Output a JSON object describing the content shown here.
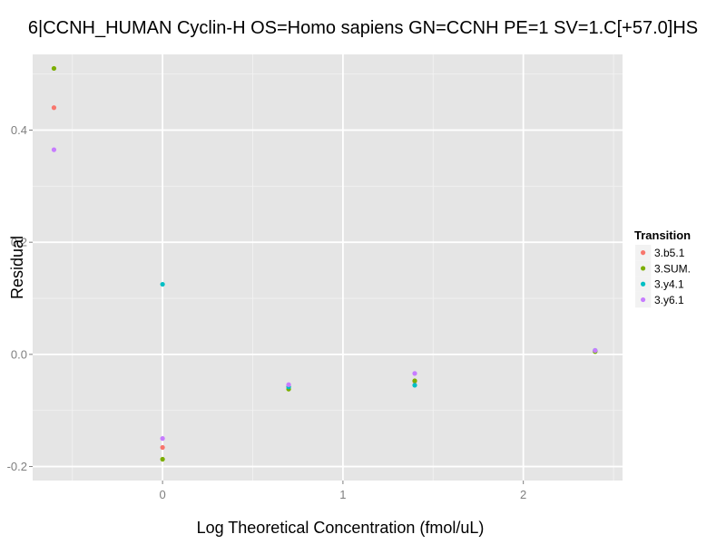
{
  "chart_data": {
    "type": "scatter",
    "title": "6|CCNH_HUMAN Cyclin-H OS=Homo sapiens GN=CCNH PE=1 SV=1.C[+57.0]HS",
    "xlabel": "Log Theoretical Concentration (fmol/uL)",
    "ylabel": "Residual",
    "xlim": [
      -0.72,
      2.55
    ],
    "ylim": [
      -0.225,
      0.535
    ],
    "x_ticks": [
      {
        "value": 0,
        "label": "0"
      },
      {
        "value": 1,
        "label": "1"
      },
      {
        "value": 2,
        "label": "2"
      }
    ],
    "y_ticks": [
      {
        "value": -0.2,
        "label": "-0.2"
      },
      {
        "value": 0.0,
        "label": "0.0"
      },
      {
        "value": 0.2,
        "label": "0.2"
      },
      {
        "value": 0.4,
        "label": "0.4"
      }
    ],
    "grid": true,
    "background": "#e5e5e5",
    "legend": {
      "title": "Transition",
      "position": "right"
    },
    "series": [
      {
        "name": "3.b5.1",
        "color": "#f8766d",
        "points": [
          {
            "x": -0.602,
            "y": 0.44
          },
          {
            "x": 0.0,
            "y": -0.166
          },
          {
            "x": 0.699,
            "y": -0.058
          },
          {
            "x": 1.398,
            "y": -0.048
          },
          {
            "x": 2.398,
            "y": 0.006
          }
        ]
      },
      {
        "name": "3.SUM.",
        "color": "#7cae00",
        "points": [
          {
            "x": -0.602,
            "y": 0.51
          },
          {
            "x": 0.0,
            "y": -0.187
          },
          {
            "x": 0.699,
            "y": -0.062
          },
          {
            "x": 1.398,
            "y": -0.047
          },
          {
            "x": 2.398,
            "y": 0.005
          }
        ]
      },
      {
        "name": "3.y4.1",
        "color": "#00bfc4",
        "points": [
          {
            "x": 0.0,
            "y": 0.125
          },
          {
            "x": 0.699,
            "y": -0.058
          },
          {
            "x": 1.398,
            "y": -0.055
          },
          {
            "x": 2.398,
            "y": 0.007
          }
        ]
      },
      {
        "name": "3.y6.1",
        "color": "#c77cff",
        "points": [
          {
            "x": -0.602,
            "y": 0.365
          },
          {
            "x": 0.0,
            "y": -0.15
          },
          {
            "x": 0.699,
            "y": -0.054
          },
          {
            "x": 1.398,
            "y": -0.034
          },
          {
            "x": 2.398,
            "y": 0.007
          }
        ]
      }
    ]
  }
}
